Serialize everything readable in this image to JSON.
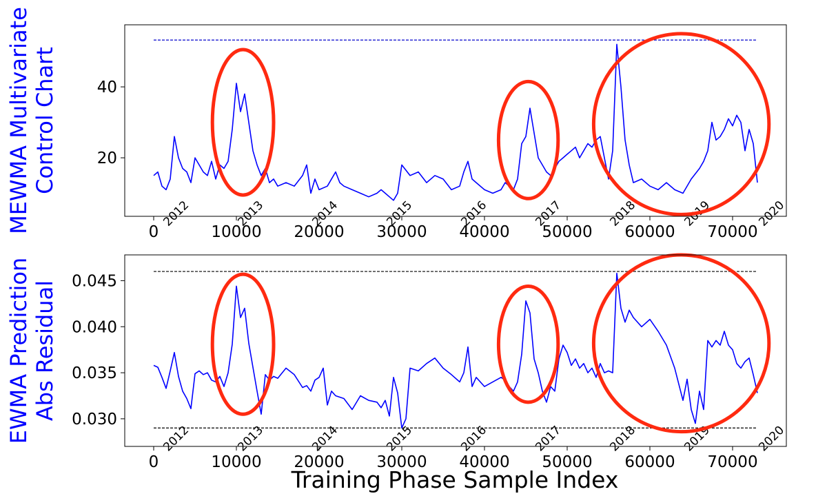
{
  "figure": {
    "xlabel": "Training Phase Sample Index"
  },
  "chart_data": [
    {
      "type": "line",
      "ylabel_lines": [
        "MEWMA Multivariate",
        "Control Chart"
      ],
      "ylabel_color": "#0000ff",
      "line_color": "#0000ff",
      "threshold_color": "#0000cc",
      "xlim": [
        -3500,
        76500
      ],
      "ylim": [
        3.5,
        57.5
      ],
      "xticks": [
        0,
        10000,
        20000,
        30000,
        40000,
        50000,
        60000,
        70000
      ],
      "xtick_labels": [
        "0",
        "10000",
        "20000",
        "30000",
        "40000",
        "50000",
        "60000",
        "70000"
      ],
      "yticks": [
        20,
        40
      ],
      "ytick_labels": [
        "20",
        "40"
      ],
      "thresholds": [
        53.2
      ],
      "year_label_y": 6.5,
      "year_labels": [
        {
          "x": 4300,
          "label": "2012"
        },
        {
          "x": 13300,
          "label": "2013"
        },
        {
          "x": 22300,
          "label": "2014"
        },
        {
          "x": 31300,
          "label": "2015"
        },
        {
          "x": 40300,
          "label": "2016"
        },
        {
          "x": 49300,
          "label": "2017"
        },
        {
          "x": 58300,
          "label": "2018"
        },
        {
          "x": 67300,
          "label": "2019"
        },
        {
          "x": 76300,
          "label": "2020"
        }
      ],
      "annotations": [
        {
          "shape": "ellipse",
          "cx": 10800,
          "cy": 30,
          "rx": 3700,
          "ry": 20.5,
          "color": "#ff2a10"
        },
        {
          "shape": "ellipse",
          "cx": 45300,
          "cy": 25,
          "rx": 3600,
          "ry": 16.5,
          "color": "#ff2a10"
        },
        {
          "shape": "ellipse",
          "cx": 63800,
          "cy": 29.5,
          "rx": 10600,
          "ry": 25.5,
          "color": "#ff2a10"
        }
      ],
      "x": [
        0,
        500,
        1000,
        1500,
        2000,
        2500,
        3000,
        3500,
        4000,
        4500,
        5000,
        5500,
        6000,
        6500,
        7000,
        7500,
        8000,
        8500,
        9000,
        9500,
        10000,
        10500,
        11000,
        11500,
        12000,
        12500,
        13000,
        13500,
        14000,
        14500,
        15000,
        16000,
        17000,
        18000,
        18500,
        19000,
        19500,
        20000,
        21000,
        22000,
        22500,
        23000,
        24000,
        25000,
        26000,
        27000,
        27500,
        28000,
        28500,
        29000,
        29500,
        30000,
        31000,
        32000,
        33000,
        34000,
        35000,
        36000,
        37000,
        37500,
        38000,
        38500,
        39000,
        40000,
        41000,
        42000,
        42500,
        43000,
        43500,
        44000,
        44500,
        45000,
        45500,
        46000,
        46500,
        47000,
        47500,
        48000,
        48500,
        49000,
        49500,
        50000,
        50500,
        51000,
        51500,
        52000,
        52500,
        53000,
        53500,
        54000,
        54500,
        55000,
        55500,
        56000,
        56500,
        57000,
        57500,
        58000,
        59000,
        60000,
        61000,
        62000,
        63000,
        64000,
        65000,
        66000,
        66500,
        67000,
        67500,
        68000,
        68500,
        69000,
        69500,
        70000,
        70500,
        71000,
        71500,
        72000,
        72500,
        73000
      ],
      "y": [
        15,
        16,
        12,
        11,
        14,
        26,
        20,
        17,
        16,
        13,
        20,
        18,
        16,
        15,
        19,
        14,
        18,
        17,
        19,
        28,
        41,
        33,
        38,
        30,
        22,
        18,
        15,
        17,
        13,
        14,
        12,
        13,
        12,
        15,
        18,
        10,
        14,
        11,
        12,
        16,
        13,
        12,
        11,
        10,
        9,
        10,
        11,
        10,
        9,
        8,
        10,
        18,
        15,
        16,
        13,
        15,
        14,
        11,
        12,
        16,
        19,
        14,
        13,
        11,
        10,
        11,
        13,
        12,
        11,
        14,
        24,
        26,
        34,
        27,
        20,
        18,
        16,
        15,
        17,
        19,
        20,
        21,
        22,
        23,
        20,
        22,
        24,
        23,
        25,
        26,
        20,
        14,
        22,
        52,
        40,
        25,
        18,
        13,
        14,
        12,
        11,
        13,
        11,
        10,
        14,
        17,
        19,
        22,
        30,
        25,
        26,
        28,
        31,
        29,
        32,
        30,
        22,
        28,
        24,
        13
      ]
    },
    {
      "type": "line",
      "ylabel_lines": [
        "EWMA Prediction",
        "Abs Residual"
      ],
      "ylabel_color": "#0000ff",
      "line_color": "#0000ff",
      "threshold_color": "#000000",
      "xlim": [
        -3500,
        76500
      ],
      "ylim": [
        0.027,
        0.0478
      ],
      "xticks": [
        0,
        10000,
        20000,
        30000,
        40000,
        50000,
        60000,
        70000
      ],
      "xtick_labels": [
        "0",
        "10000",
        "20000",
        "30000",
        "40000",
        "50000",
        "60000",
        "70000"
      ],
      "yticks": [
        0.03,
        0.035,
        0.04,
        0.045
      ],
      "ytick_labels": [
        "0.030",
        "0.035",
        "0.040",
        "0.045"
      ],
      "thresholds": [
        0.029,
        0.046
      ],
      "year_label_y": 0.0287,
      "year_labels": [
        {
          "x": 4300,
          "label": "2012"
        },
        {
          "x": 13300,
          "label": "2013"
        },
        {
          "x": 22300,
          "label": "2014"
        },
        {
          "x": 31300,
          "label": "2015"
        },
        {
          "x": 40300,
          "label": "2016"
        },
        {
          "x": 49300,
          "label": "2017"
        },
        {
          "x": 58300,
          "label": "2018"
        },
        {
          "x": 67300,
          "label": "2019"
        },
        {
          "x": 76300,
          "label": "2020"
        }
      ],
      "annotations": [
        {
          "shape": "ellipse",
          "cx": 10800,
          "cy": 0.0381,
          "rx": 3700,
          "ry": 0.0076,
          "color": "#ff2a10"
        },
        {
          "shape": "ellipse",
          "cx": 45300,
          "cy": 0.0381,
          "rx": 3600,
          "ry": 0.0063,
          "color": "#ff2a10"
        },
        {
          "shape": "ellipse",
          "cx": 63800,
          "cy": 0.0382,
          "rx": 10600,
          "ry": 0.0096,
          "color": "#ff2a10"
        }
      ],
      "x": [
        0,
        500,
        1000,
        1500,
        2000,
        2500,
        3000,
        3500,
        4000,
        4500,
        5000,
        5500,
        6000,
        6500,
        7000,
        7500,
        8000,
        8500,
        9000,
        9500,
        10000,
        10500,
        11000,
        11500,
        12000,
        12500,
        13000,
        13500,
        14000,
        14500,
        15000,
        16000,
        17000,
        18000,
        18500,
        19000,
        19500,
        20000,
        20500,
        21000,
        21500,
        22000,
        23000,
        24000,
        25000,
        26000,
        27000,
        27500,
        28000,
        28500,
        29000,
        29500,
        30000,
        30500,
        31000,
        32000,
        33000,
        34000,
        35000,
        36000,
        37000,
        37500,
        38000,
        38500,
        39000,
        40000,
        41000,
        42000,
        42500,
        43000,
        43500,
        44000,
        44500,
        45000,
        45500,
        46000,
        46500,
        47000,
        47500,
        48000,
        48500,
        49000,
        49500,
        50000,
        50500,
        51000,
        51500,
        52000,
        52500,
        53000,
        53500,
        54000,
        54500,
        55000,
        55500,
        56000,
        56500,
        57000,
        57500,
        58000,
        59000,
        60000,
        61000,
        62000,
        63000,
        64000,
        64500,
        65000,
        65500,
        66000,
        66500,
        67000,
        67500,
        68000,
        68500,
        69000,
        69500,
        70000,
        70500,
        71000,
        71500,
        72000,
        72500,
        73000
      ],
      "y": [
        0.0358,
        0.0356,
        0.0345,
        0.0333,
        0.0352,
        0.0372,
        0.0346,
        0.033,
        0.0322,
        0.0311,
        0.0349,
        0.0352,
        0.0348,
        0.035,
        0.0342,
        0.034,
        0.0346,
        0.0335,
        0.035,
        0.0381,
        0.0444,
        0.041,
        0.042,
        0.0382,
        0.0356,
        0.033,
        0.0305,
        0.0348,
        0.0342,
        0.0346,
        0.0344,
        0.0355,
        0.0348,
        0.0334,
        0.0336,
        0.033,
        0.0342,
        0.0345,
        0.0355,
        0.0315,
        0.033,
        0.0325,
        0.0322,
        0.031,
        0.0325,
        0.032,
        0.0318,
        0.0312,
        0.032,
        0.0303,
        0.0345,
        0.0328,
        0.029,
        0.03,
        0.0355,
        0.0352,
        0.036,
        0.0366,
        0.0355,
        0.0348,
        0.034,
        0.035,
        0.0378,
        0.0335,
        0.0345,
        0.0335,
        0.034,
        0.0345,
        0.0342,
        0.0335,
        0.033,
        0.034,
        0.037,
        0.0428,
        0.0415,
        0.0365,
        0.035,
        0.033,
        0.0318,
        0.0335,
        0.033,
        0.0365,
        0.038,
        0.0372,
        0.0358,
        0.0365,
        0.0355,
        0.036,
        0.035,
        0.0355,
        0.0345,
        0.036,
        0.035,
        0.0352,
        0.035,
        0.0458,
        0.042,
        0.0405,
        0.0418,
        0.041,
        0.04,
        0.0408,
        0.0395,
        0.038,
        0.0355,
        0.032,
        0.0343,
        0.031,
        0.0295,
        0.033,
        0.031,
        0.0385,
        0.0378,
        0.0385,
        0.038,
        0.0395,
        0.038,
        0.0375,
        0.036,
        0.0355,
        0.0362,
        0.0366,
        0.0348,
        0.0328
      ]
    }
  ]
}
